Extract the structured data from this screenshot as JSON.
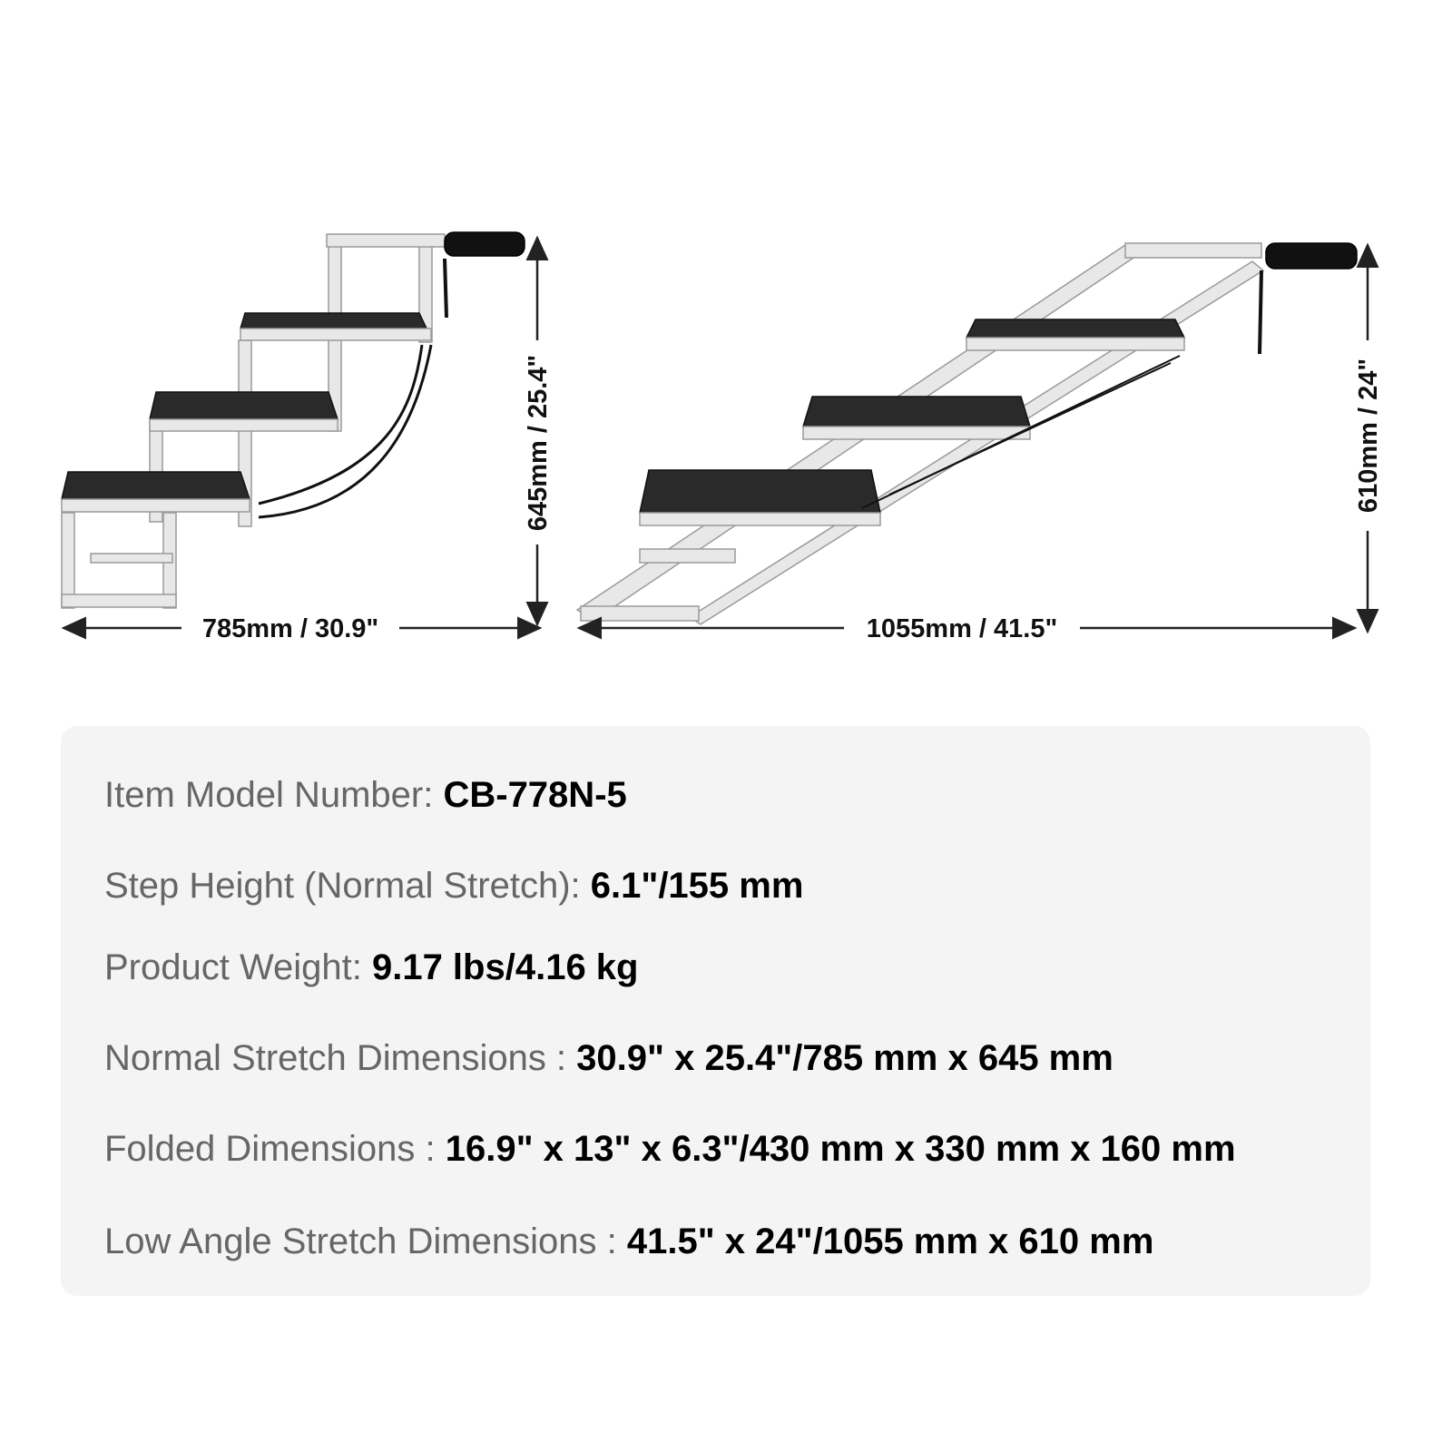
{
  "diagram": {
    "normal_stretch": {
      "width_label": "785mm / 30.9\"",
      "height_label": "645mm / 25.4\""
    },
    "low_angle_stretch": {
      "width_label": "1055mm / 41.5\"",
      "height_label": "610mm / 24\""
    },
    "colors": {
      "frame": "#e6e6e6",
      "frame_edge": "#9a9a9a",
      "tread": "#2a2a2a",
      "handle": "#111111",
      "dimension_line": "#222222"
    }
  },
  "specs": [
    {
      "label": "Item Model Number: ",
      "value": "CB-778N-5"
    },
    {
      "label": "Step Height (Normal Stretch): ",
      "value": "6.1\"/155 mm"
    },
    {
      "label": "Product Weight: ",
      "value": "9.17 lbs/4.16 kg"
    },
    {
      "label": "Normal Stretch Dimensions : ",
      "value": "30.9\" x 25.4\"/785 mm x 645 mm"
    },
    {
      "label": "Folded Dimensions : ",
      "value": "16.9\" x 13\" x 6.3\"/430 mm x 330 mm x 160 mm"
    },
    {
      "label": "Low Angle Stretch Dimensions : ",
      "value": "41.5\" x 24\"/1055 mm x 610 mm"
    }
  ]
}
